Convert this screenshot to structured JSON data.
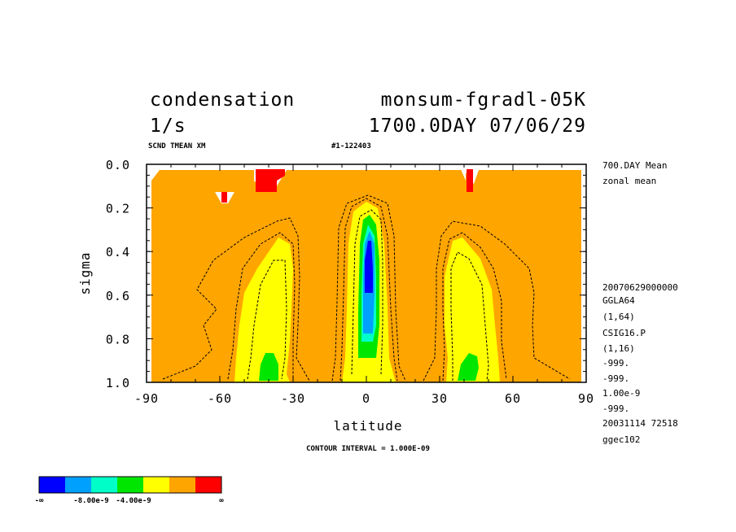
{
  "chart_data": {
    "type": "heatmap",
    "title_left_1": "condensation",
    "title_right_1": "monsum-fgradl-05K",
    "title_left_2": "1/s",
    "title_right_2": "1700.0DAY 07/06/29",
    "sub_left": "SCND TMEAN XM",
    "sub_right": "#1-122403",
    "xlabel": "latitude",
    "ylabel": "sigma",
    "xlim": [
      -90,
      90
    ],
    "ylim": [
      1.0,
      0.0
    ],
    "x_ticks": [
      "-90",
      "-60",
      "-30",
      "0",
      "30",
      "60",
      "90"
    ],
    "y_ticks": [
      "0.0",
      "0.2",
      "0.4",
      "0.6",
      "0.8",
      "1.0"
    ],
    "contour_interval_label": "CONTOUR INTERVAL = 1.000E-09",
    "side_info": [
      "700.DAY Mean",
      "zonal mean",
      "20070629000000",
      "GGLA64",
      "(1,64)",
      "CSIG16.P",
      "(1,16)",
      "-999.",
      "-999.",
      "1.00e-9",
      "-999.",
      "20031114  72518",
      "ggec102"
    ],
    "legend": {
      "colors": [
        "#0000ff",
        "#00a0ff",
        "#00ffc8",
        "#00e600",
        "#ffff00",
        "#ffa500",
        "#ff0000"
      ],
      "labels": [
        "-∞",
        "-8.00e-9",
        "-4.00e-9",
        "∞"
      ]
    }
  }
}
